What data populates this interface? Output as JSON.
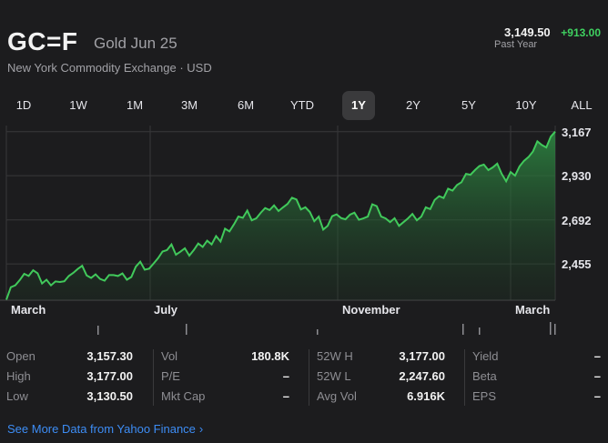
{
  "quote": {
    "symbol": "GC=F",
    "name": "Gold Jun 25",
    "exchange": "New York Commodity Exchange · USD",
    "price": "3,149.50",
    "change": "+913.00",
    "period": "Past Year"
  },
  "tabs": [
    {
      "label": "1D",
      "active": false
    },
    {
      "label": "1W",
      "active": false
    },
    {
      "label": "1M",
      "active": false
    },
    {
      "label": "3M",
      "active": false
    },
    {
      "label": "6M",
      "active": false
    },
    {
      "label": "YTD",
      "active": false
    },
    {
      "label": "1Y",
      "active": true
    },
    {
      "label": "2Y",
      "active": false
    },
    {
      "label": "5Y",
      "active": false
    },
    {
      "label": "10Y",
      "active": false
    },
    {
      "label": "ALL",
      "active": false
    }
  ],
  "chart_data": {
    "type": "area",
    "title": "",
    "xlabel": "",
    "ylabel": "",
    "x_ticks": [
      "March",
      "July",
      "November",
      "March"
    ],
    "y_ticks": [
      "3,167",
      "2,930",
      "2,692",
      "2,455"
    ],
    "y_tick_values": [
      3167,
      2930,
      2692,
      2455
    ],
    "ylim": [
      2260,
      3200
    ],
    "grid": true,
    "line_color": "#41c95b",
    "series": [
      {
        "values": [
          2263,
          2330,
          2340,
          2368,
          2402,
          2390,
          2421,
          2405,
          2350,
          2370,
          2340,
          2361,
          2358,
          2362,
          2390,
          2407,
          2428,
          2445,
          2393,
          2380,
          2399,
          2374,
          2365,
          2395,
          2395,
          2390,
          2404,
          2370,
          2385,
          2440,
          2467,
          2424,
          2430,
          2458,
          2486,
          2522,
          2530,
          2560,
          2505,
          2521,
          2539,
          2500,
          2530,
          2565,
          2547,
          2580,
          2560,
          2605,
          2576,
          2645,
          2630,
          2668,
          2710,
          2703,
          2742,
          2690,
          2700,
          2730,
          2756,
          2745,
          2770,
          2740,
          2760,
          2778,
          2812,
          2802,
          2748,
          2760,
          2735,
          2685,
          2710,
          2640,
          2660,
          2712,
          2722,
          2702,
          2695,
          2720,
          2731,
          2693,
          2700,
          2710,
          2776,
          2766,
          2710,
          2700,
          2680,
          2701,
          2660,
          2680,
          2700,
          2724,
          2690,
          2710,
          2760,
          2750,
          2800,
          2820,
          2810,
          2860,
          2850,
          2880,
          2895,
          2940,
          2935,
          2960,
          2982,
          2990,
          2960,
          2975,
          2995,
          2940,
          2900,
          2950,
          2930,
          2980,
          3010,
          3030,
          3060,
          3115,
          3095,
          3082,
          3140,
          3167
        ]
      }
    ]
  },
  "stats": {
    "col1": [
      {
        "label": "Open",
        "value": "3,157.30"
      },
      {
        "label": "High",
        "value": "3,177.00"
      },
      {
        "label": "Low",
        "value": "3,130.50"
      }
    ],
    "col2": [
      {
        "label": "Vol",
        "value": "180.8K"
      },
      {
        "label": "P/E",
        "value": "–"
      },
      {
        "label": "Mkt Cap",
        "value": "–"
      }
    ],
    "col3": [
      {
        "label": "52W H",
        "value": "3,177.00"
      },
      {
        "label": "52W L",
        "value": "2,247.60"
      },
      {
        "label": "Avg Vol",
        "value": "6.916K"
      }
    ],
    "col4": [
      {
        "label": "Yield",
        "value": "–"
      },
      {
        "label": "Beta",
        "value": "–"
      },
      {
        "label": "EPS",
        "value": "–"
      }
    ]
  },
  "footer": {
    "link_label": "See More Data from Yahoo Finance",
    "chevron": "›"
  }
}
